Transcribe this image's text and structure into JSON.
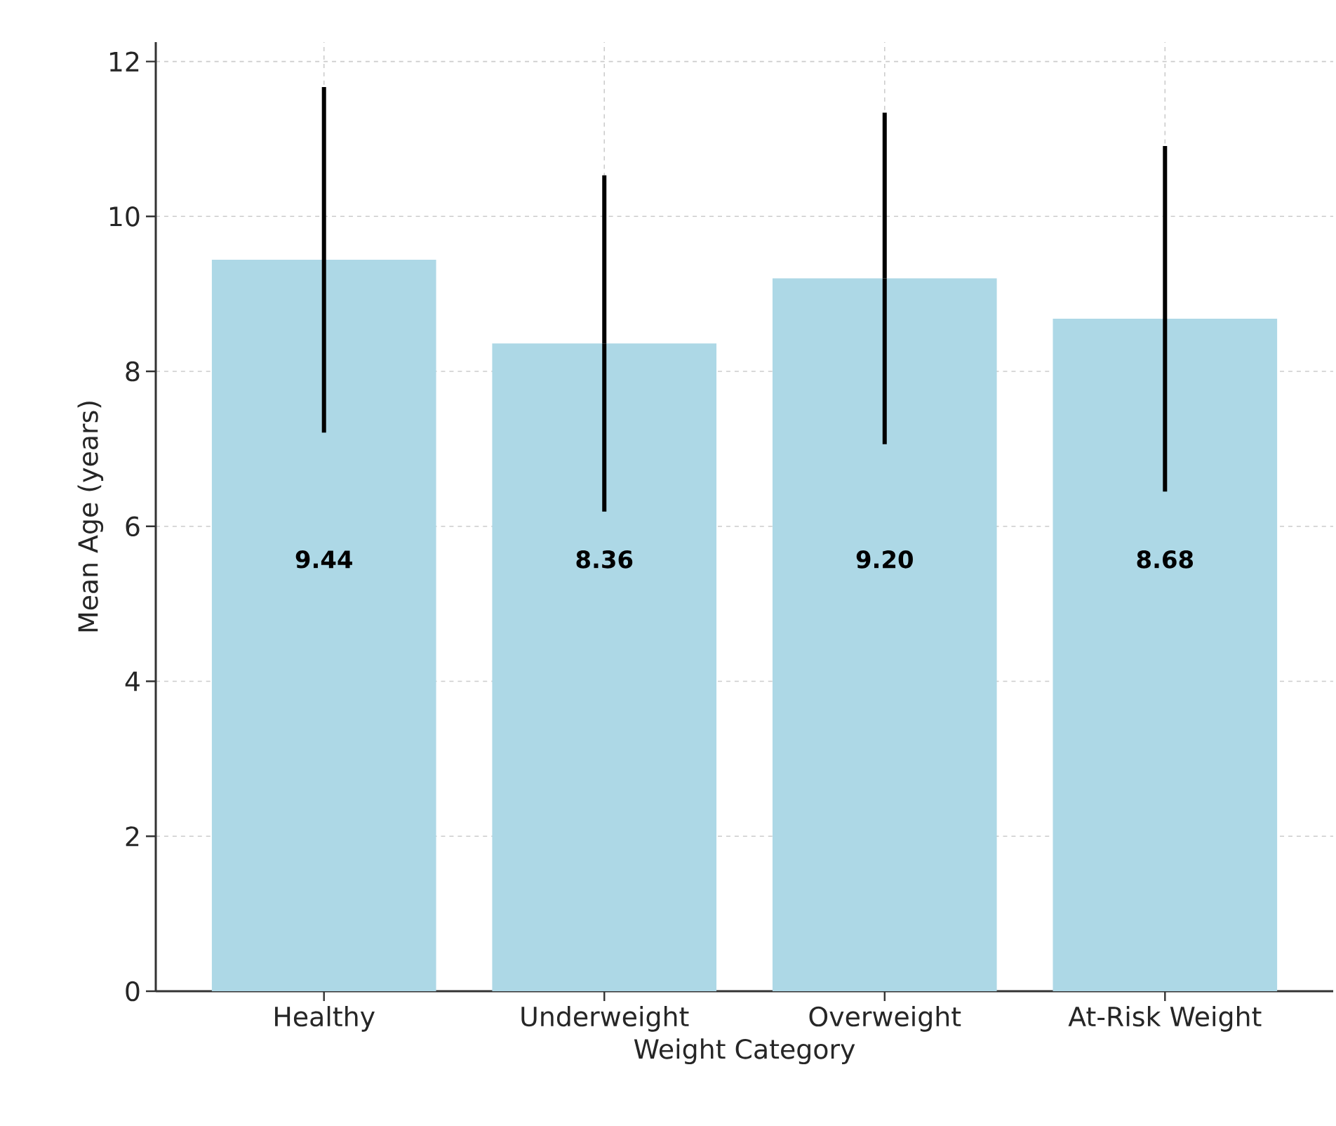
{
  "chart_data": {
    "type": "bar",
    "xlabel": "Weight Category",
    "ylabel": "Mean Age (years)",
    "categories": [
      "Healthy",
      "Underweight",
      "Overweight",
      "At-Risk Weight"
    ],
    "values": [
      9.44,
      8.36,
      9.2,
      8.68
    ],
    "errors": [
      2.23,
      2.17,
      2.14,
      2.23
    ],
    "value_labels": [
      "9.44",
      "8.36",
      "9.20",
      "8.68"
    ],
    "color": "#add8e6",
    "ylim": [
      0,
      12.25
    ],
    "yticks": [
      0,
      2,
      4,
      6,
      8,
      10,
      12
    ],
    "grid": true
  }
}
